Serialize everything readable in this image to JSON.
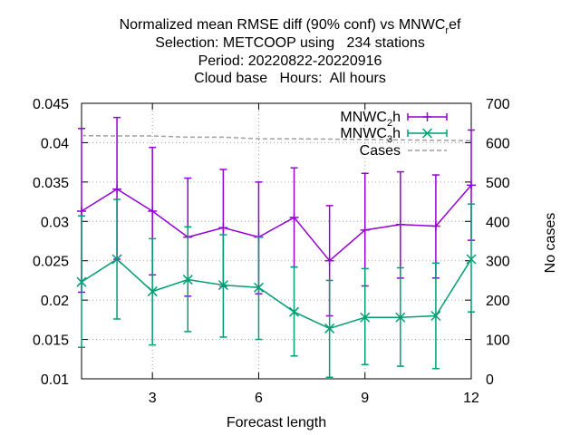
{
  "chart_data": {
    "type": "line",
    "title_lines": [
      "Normalized mean RMSE diff (90% conf) vs MNWC",
      "Selection: METCOOP using   234 stations",
      "Period: 20220822-20220916",
      "Cloud base   Hours:  All hours"
    ],
    "title_sub": "r",
    "title_suffix": "ef",
    "xlabel": "Forecast length",
    "ylabel_right": "No cases",
    "xlim": [
      1,
      12
    ],
    "ylim": [
      0.01,
      0.045
    ],
    "y2lim": [
      0,
      700
    ],
    "x_ticks": [
      3,
      6,
      9,
      12
    ],
    "y_ticks": [
      0.01,
      0.015,
      0.02,
      0.025,
      0.03,
      0.035,
      0.04,
      0.045
    ],
    "y_tick_labels": [
      "0.01",
      "0.015",
      "0.02",
      "0.025",
      "0.03",
      "0.035",
      "0.04",
      "0.045"
    ],
    "y2_ticks": [
      0,
      100,
      200,
      300,
      400,
      500,
      600,
      700
    ],
    "grid": true,
    "legend_position": "top-right",
    "x": [
      1,
      2,
      3,
      4,
      5,
      6,
      7,
      8,
      9,
      10,
      11,
      12
    ],
    "series": [
      {
        "legend_main": "MNWC",
        "legend_sub": "2",
        "legend_suffix": "h",
        "color": "#9400d3",
        "marker": "plus",
        "values": [
          0.0313,
          0.0341,
          0.0313,
          0.028,
          0.0292,
          0.028,
          0.0305,
          0.025,
          0.0289,
          0.0296,
          0.0294,
          0.0346
        ],
        "low": [
          0.021,
          0.0252,
          0.0232,
          0.0205,
          0.0217,
          0.0208,
          0.0242,
          0.018,
          0.0218,
          0.0228,
          0.0228,
          0.0276
        ],
        "high": [
          0.0418,
          0.0432,
          0.0394,
          0.0355,
          0.0366,
          0.035,
          0.0368,
          0.032,
          0.0361,
          0.0363,
          0.0359,
          0.0416
        ]
      },
      {
        "legend_main": "MNWC",
        "legend_sub": "3",
        "legend_suffix": "h",
        "color": "#009e73",
        "marker": "cross",
        "values": [
          0.0223,
          0.0252,
          0.0211,
          0.0226,
          0.0219,
          0.0216,
          0.0185,
          0.0164,
          0.0178,
          0.0178,
          0.018,
          0.0252
        ],
        "low": [
          0.014,
          0.0176,
          0.0143,
          0.016,
          0.0153,
          0.015,
          0.0129,
          0.0102,
          0.0118,
          0.0116,
          0.0113,
          0.0185
        ],
        "high": [
          0.0307,
          0.0328,
          0.0278,
          0.0293,
          0.0283,
          0.028,
          0.0242,
          0.0225,
          0.024,
          0.0241,
          0.0247,
          0.0322
        ]
      },
      {
        "name": "Cases",
        "color": "#a0a0a0",
        "dashed": true,
        "axis": "right",
        "values": [
          618,
          617,
          617,
          614,
          614,
          610,
          610,
          609,
          608,
          607,
          606,
          605
        ]
      }
    ]
  }
}
